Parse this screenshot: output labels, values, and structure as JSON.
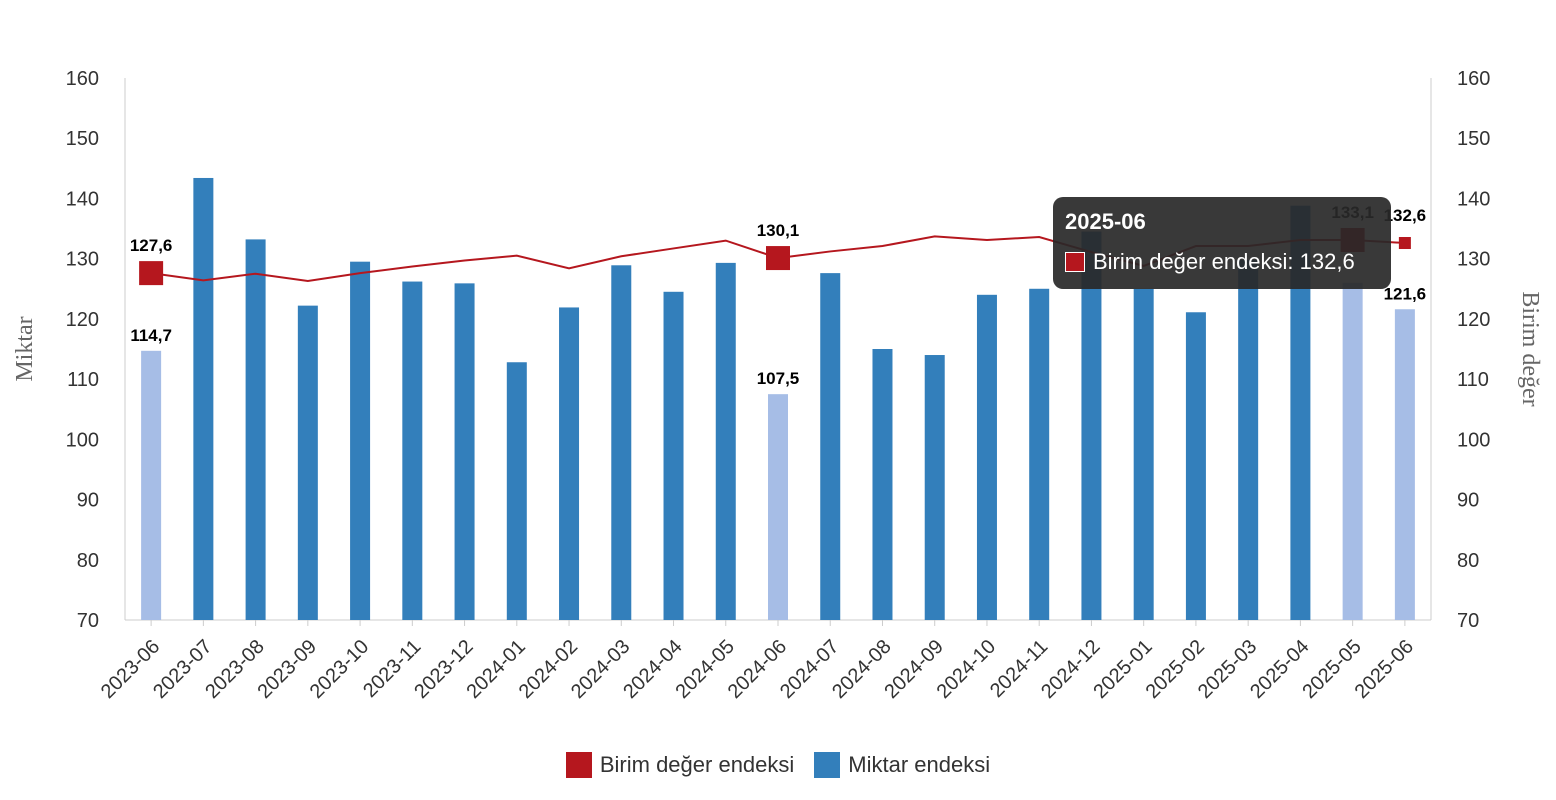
{
  "chart_data": {
    "type": "bar+line",
    "title": "",
    "categories": [
      "2023-06",
      "2023-07",
      "2023-08",
      "2023-09",
      "2023-10",
      "2023-11",
      "2023-12",
      "2024-01",
      "2024-02",
      "2024-03",
      "2024-04",
      "2024-05",
      "2024-06",
      "2024-07",
      "2024-08",
      "2024-09",
      "2024-10",
      "2024-11",
      "2024-12",
      "2025-01",
      "2025-02",
      "2025-03",
      "2025-04",
      "2025-05",
      "2025-06"
    ],
    "y_left": {
      "label": "Miktar",
      "range": [
        70,
        160
      ],
      "ticks": [
        70,
        80,
        90,
        100,
        110,
        120,
        130,
        140,
        150,
        160
      ]
    },
    "y_right": {
      "label": "Birim değer",
      "range": [
        70,
        160
      ],
      "ticks": [
        70,
        80,
        90,
        100,
        110,
        120,
        130,
        140,
        150,
        160
      ]
    },
    "series": [
      {
        "name": "Birim değer endeksi",
        "type": "line",
        "axis": "right",
        "color": "#b5171e",
        "values": [
          127.6,
          126.4,
          127.5,
          126.3,
          127.6,
          128.7,
          129.7,
          130.5,
          128.4,
          130.4,
          131.7,
          133.0,
          130.1,
          131.2,
          132.1,
          133.7,
          133.1,
          133.6,
          131.1,
          128.8,
          132.1,
          132.1,
          133.1,
          133.1,
          132.6
        ],
        "highlighted": [
          0,
          12,
          23,
          24
        ]
      },
      {
        "name": "Miktar endeksi",
        "type": "bar",
        "axis": "left",
        "color": "#337fbb",
        "highlight_color": "#a6bde6",
        "values": [
          114.7,
          143.4,
          133.2,
          122.2,
          129.5,
          126.2,
          125.9,
          112.8,
          121.9,
          128.9,
          124.5,
          129.3,
          107.5,
          127.6,
          115.0,
          114.0,
          124.0,
          125.0,
          134.5,
          125.0,
          121.1,
          129.8,
          138.8,
          126.0,
          121.6
        ],
        "highlighted": [
          0,
          12,
          23,
          24
        ]
      }
    ],
    "data_labels": [
      {
        "series": "Birim değer endeksi",
        "index": 0,
        "text": "127,6"
      },
      {
        "series": "Birim değer endeksi",
        "index": 12,
        "text": "130,1"
      },
      {
        "series": "Birim değer endeksi",
        "index": 23,
        "text": "133,1"
      },
      {
        "series": "Birim değer endeksi",
        "index": 24,
        "text": "132,6"
      },
      {
        "series": "Miktar endeksi",
        "index": 0,
        "text": "114,7"
      },
      {
        "series": "Miktar endeksi",
        "index": 12,
        "text": "107,5"
      },
      {
        "series": "Miktar endeksi",
        "index": 24,
        "text": "121,6"
      }
    ],
    "legend": {
      "placement": "bottom"
    },
    "grid": false
  },
  "legend": {
    "unit_value_label": "Birim değer endeksi",
    "quantity_label": "Miktar endeksi"
  },
  "tooltip": {
    "title": "2025-06",
    "row": "Birim değer endeksi: 132,6",
    "color": "#b5171e"
  }
}
